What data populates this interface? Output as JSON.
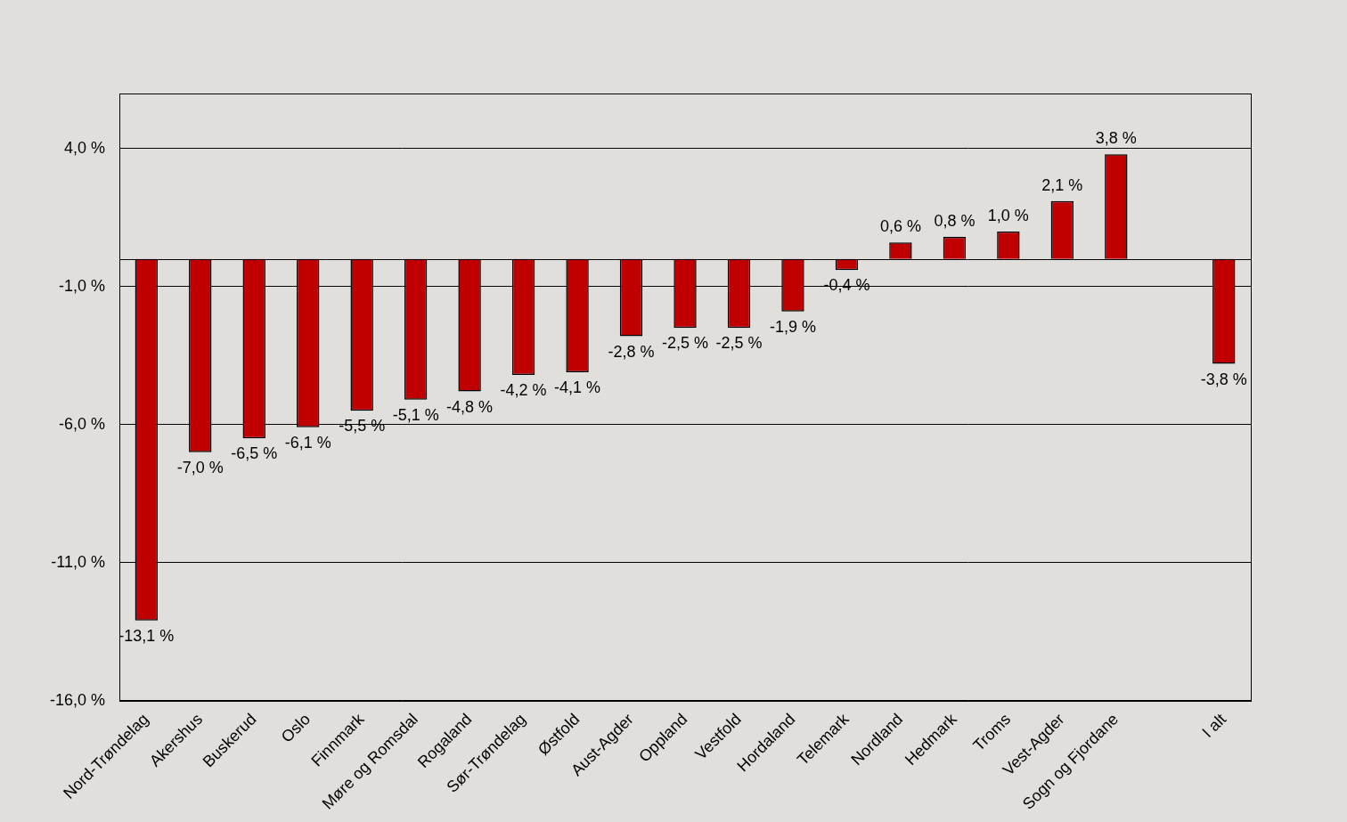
{
  "chart_data": {
    "type": "bar",
    "categories": [
      "Nord-Trøndelag",
      "Akershus",
      "Buskerud",
      "Oslo",
      "Finnmark",
      "Møre og Romsdal",
      "Rogaland",
      "Sør-Trøndelag",
      "Østfold",
      "Aust-Agder",
      "Oppland",
      "Vestfold",
      "Hordaland",
      "Telemark",
      "Nordland",
      "Hedmark",
      "Troms",
      "Vest-Agder",
      "Sogn og Fjordane",
      null,
      "I alt"
    ],
    "values": [
      -13.1,
      -7.0,
      -6.5,
      -6.1,
      -5.5,
      -5.1,
      -4.8,
      -4.2,
      -4.1,
      -2.8,
      -2.5,
      -2.5,
      -1.9,
      -0.4,
      0.6,
      0.8,
      1.0,
      2.1,
      3.8,
      null,
      -3.8
    ],
    "value_labels": [
      "-13,1 %",
      "-7,0 %",
      "-6,5 %",
      "-6,1 %",
      "-5,5 %",
      "-5,1 %",
      "-4,8 %",
      "-4,2 %",
      "-4,1 %",
      "-2,8 %",
      "-2,5 %",
      "-2,5 %",
      "-1,9 %",
      "-0,4 %",
      "0,6 %",
      "0,8 %",
      "1,0 %",
      "2,1 %",
      "3,8 %",
      null,
      "-3,8 %"
    ],
    "color": "#c00000",
    "ylim": [
      -16,
      6
    ],
    "yticks": [
      {
        "value": -16,
        "label": "-16,0 %"
      },
      {
        "value": -11,
        "label": "-11,0 %"
      },
      {
        "value": -6,
        "label": "-6,0 %"
      },
      {
        "value": -1,
        "label": "-1,0 %"
      },
      {
        "value": 4,
        "label": "4,0 %"
      }
    ],
    "grid": true,
    "data_labels": true
  }
}
